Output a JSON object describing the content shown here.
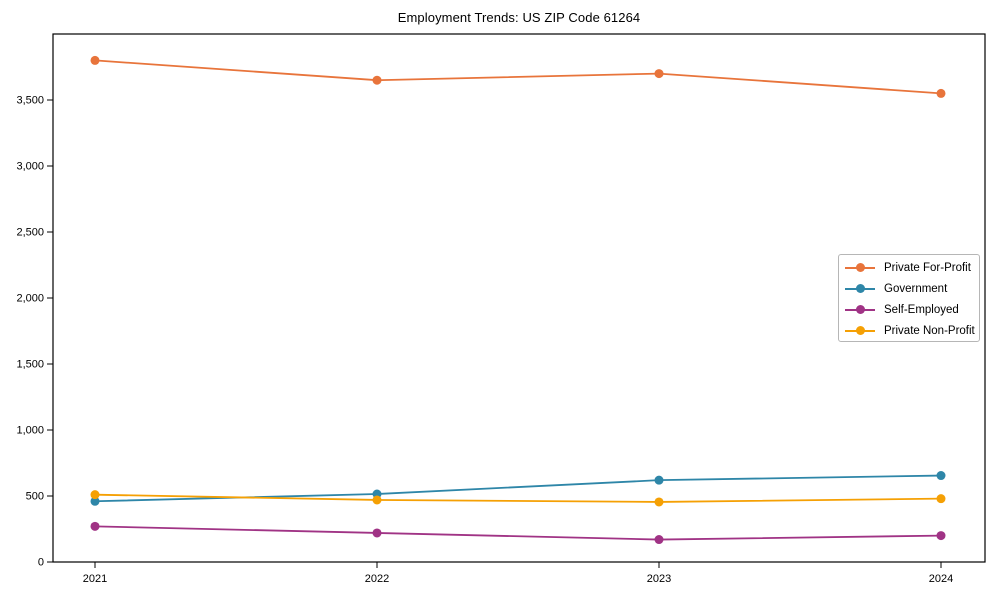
{
  "chart_data": {
    "type": "line",
    "title": "Employment Trends: US ZIP Code 61264",
    "xlabel": "",
    "ylabel": "",
    "categories": [
      "2021",
      "2022",
      "2023",
      "2024"
    ],
    "series": [
      {
        "name": "Private For-Profit",
        "color": "#e8743b",
        "values": [
          3800,
          3650,
          3700,
          3550
        ]
      },
      {
        "name": "Government",
        "color": "#2e86a8",
        "values": [
          460,
          515,
          620,
          655
        ]
      },
      {
        "name": "Self-Employed",
        "color": "#a03385",
        "values": [
          270,
          220,
          170,
          200
        ]
      },
      {
        "name": "Private Non-Profit",
        "color": "#f5a004",
        "values": [
          510,
          470,
          455,
          480
        ]
      }
    ],
    "ylim": [
      0,
      4000
    ],
    "yticks": [
      {
        "value": 0,
        "label": "0"
      },
      {
        "value": 500,
        "label": "500"
      },
      {
        "value": 1000,
        "label": "1,000"
      },
      {
        "value": 1500,
        "label": "1,500"
      },
      {
        "value": 2000,
        "label": "2,000"
      },
      {
        "value": 2500,
        "label": "2,500"
      },
      {
        "value": 3000,
        "label": "3,000"
      },
      {
        "value": 3500,
        "label": "3,500"
      }
    ],
    "grid": false,
    "legend_position": "center-right",
    "axis_color": "#000000",
    "tick_label_color": "#000000"
  }
}
